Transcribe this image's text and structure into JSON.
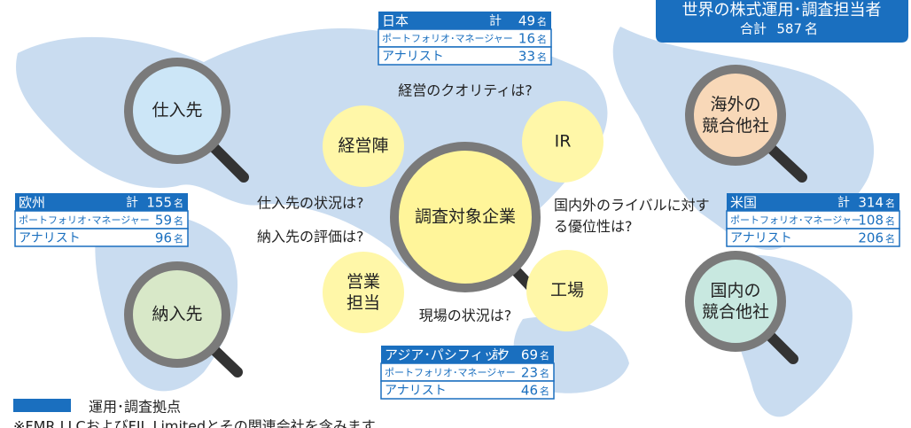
{
  "title": {
    "heading": "世界の株式運用･調査担当者",
    "total_label": "合計",
    "total": 587,
    "unit": "名"
  },
  "regions": [
    {
      "name": "日本",
      "total_label": "計",
      "total": 49,
      "rows": [
        {
          "label": "ポートフォリオ･マネージャー",
          "value": 16
        },
        {
          "label": "アナリスト",
          "value": 33
        }
      ]
    },
    {
      "name": "欧州",
      "total_label": "計",
      "total": 155,
      "rows": [
        {
          "label": "ポートフォリオ･マネージャー",
          "value": 59
        },
        {
          "label": "アナリスト",
          "value": 96
        }
      ]
    },
    {
      "name": "米国",
      "total_label": "計",
      "total": 314,
      "rows": [
        {
          "label": "ポートフォリオ･マネージャー",
          "value": 108
        },
        {
          "label": "アナリスト",
          "value": 206
        }
      ]
    },
    {
      "name": "アジア･パシフィック",
      "total_label": "計",
      "total": 69,
      "rows": [
        {
          "label": "ポートフォリオ･マネージャー",
          "value": 23
        },
        {
          "label": "アナリスト",
          "value": 46
        }
      ]
    }
  ],
  "lenses": [
    "仕入先",
    "納入先",
    "海外の競合他社",
    "国内の競合他社"
  ],
  "center": "調査対象企業",
  "circles": [
    "経営陣",
    "IR",
    "営業担当",
    "工場"
  ],
  "questions": [
    "経営のクオリティは?",
    "仕入先の状況は?",
    "納入先の評価は?",
    "国内外のライバルに対する優位性は?",
    "現場の状況は?"
  ],
  "legend": "運用･調査拠点",
  "footnote": "※FMR LLCおよびFIL Limitedとその関連会社を含みます"
}
